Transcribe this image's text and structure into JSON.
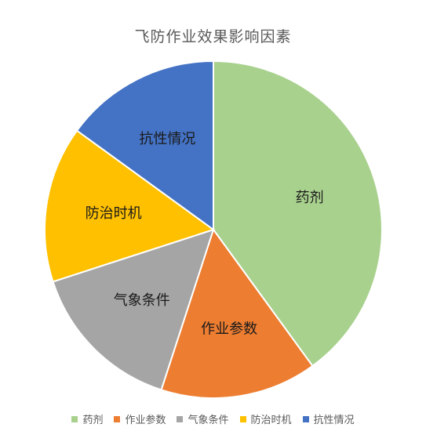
{
  "chart_data": {
    "type": "pie",
    "title": "飞防作业效果影响因素",
    "categories": [
      "药剂",
      "作业参数",
      "气象条件",
      "防治时机",
      "抗性情况"
    ],
    "values": [
      40,
      15,
      15,
      15,
      15
    ],
    "colors": [
      "#A9D18E",
      "#ED7D31",
      "#A5A5A5",
      "#FFC000",
      "#4472C4"
    ],
    "start_angle_deg": 0,
    "direction": "clockwise",
    "legend_position": "bottom"
  }
}
